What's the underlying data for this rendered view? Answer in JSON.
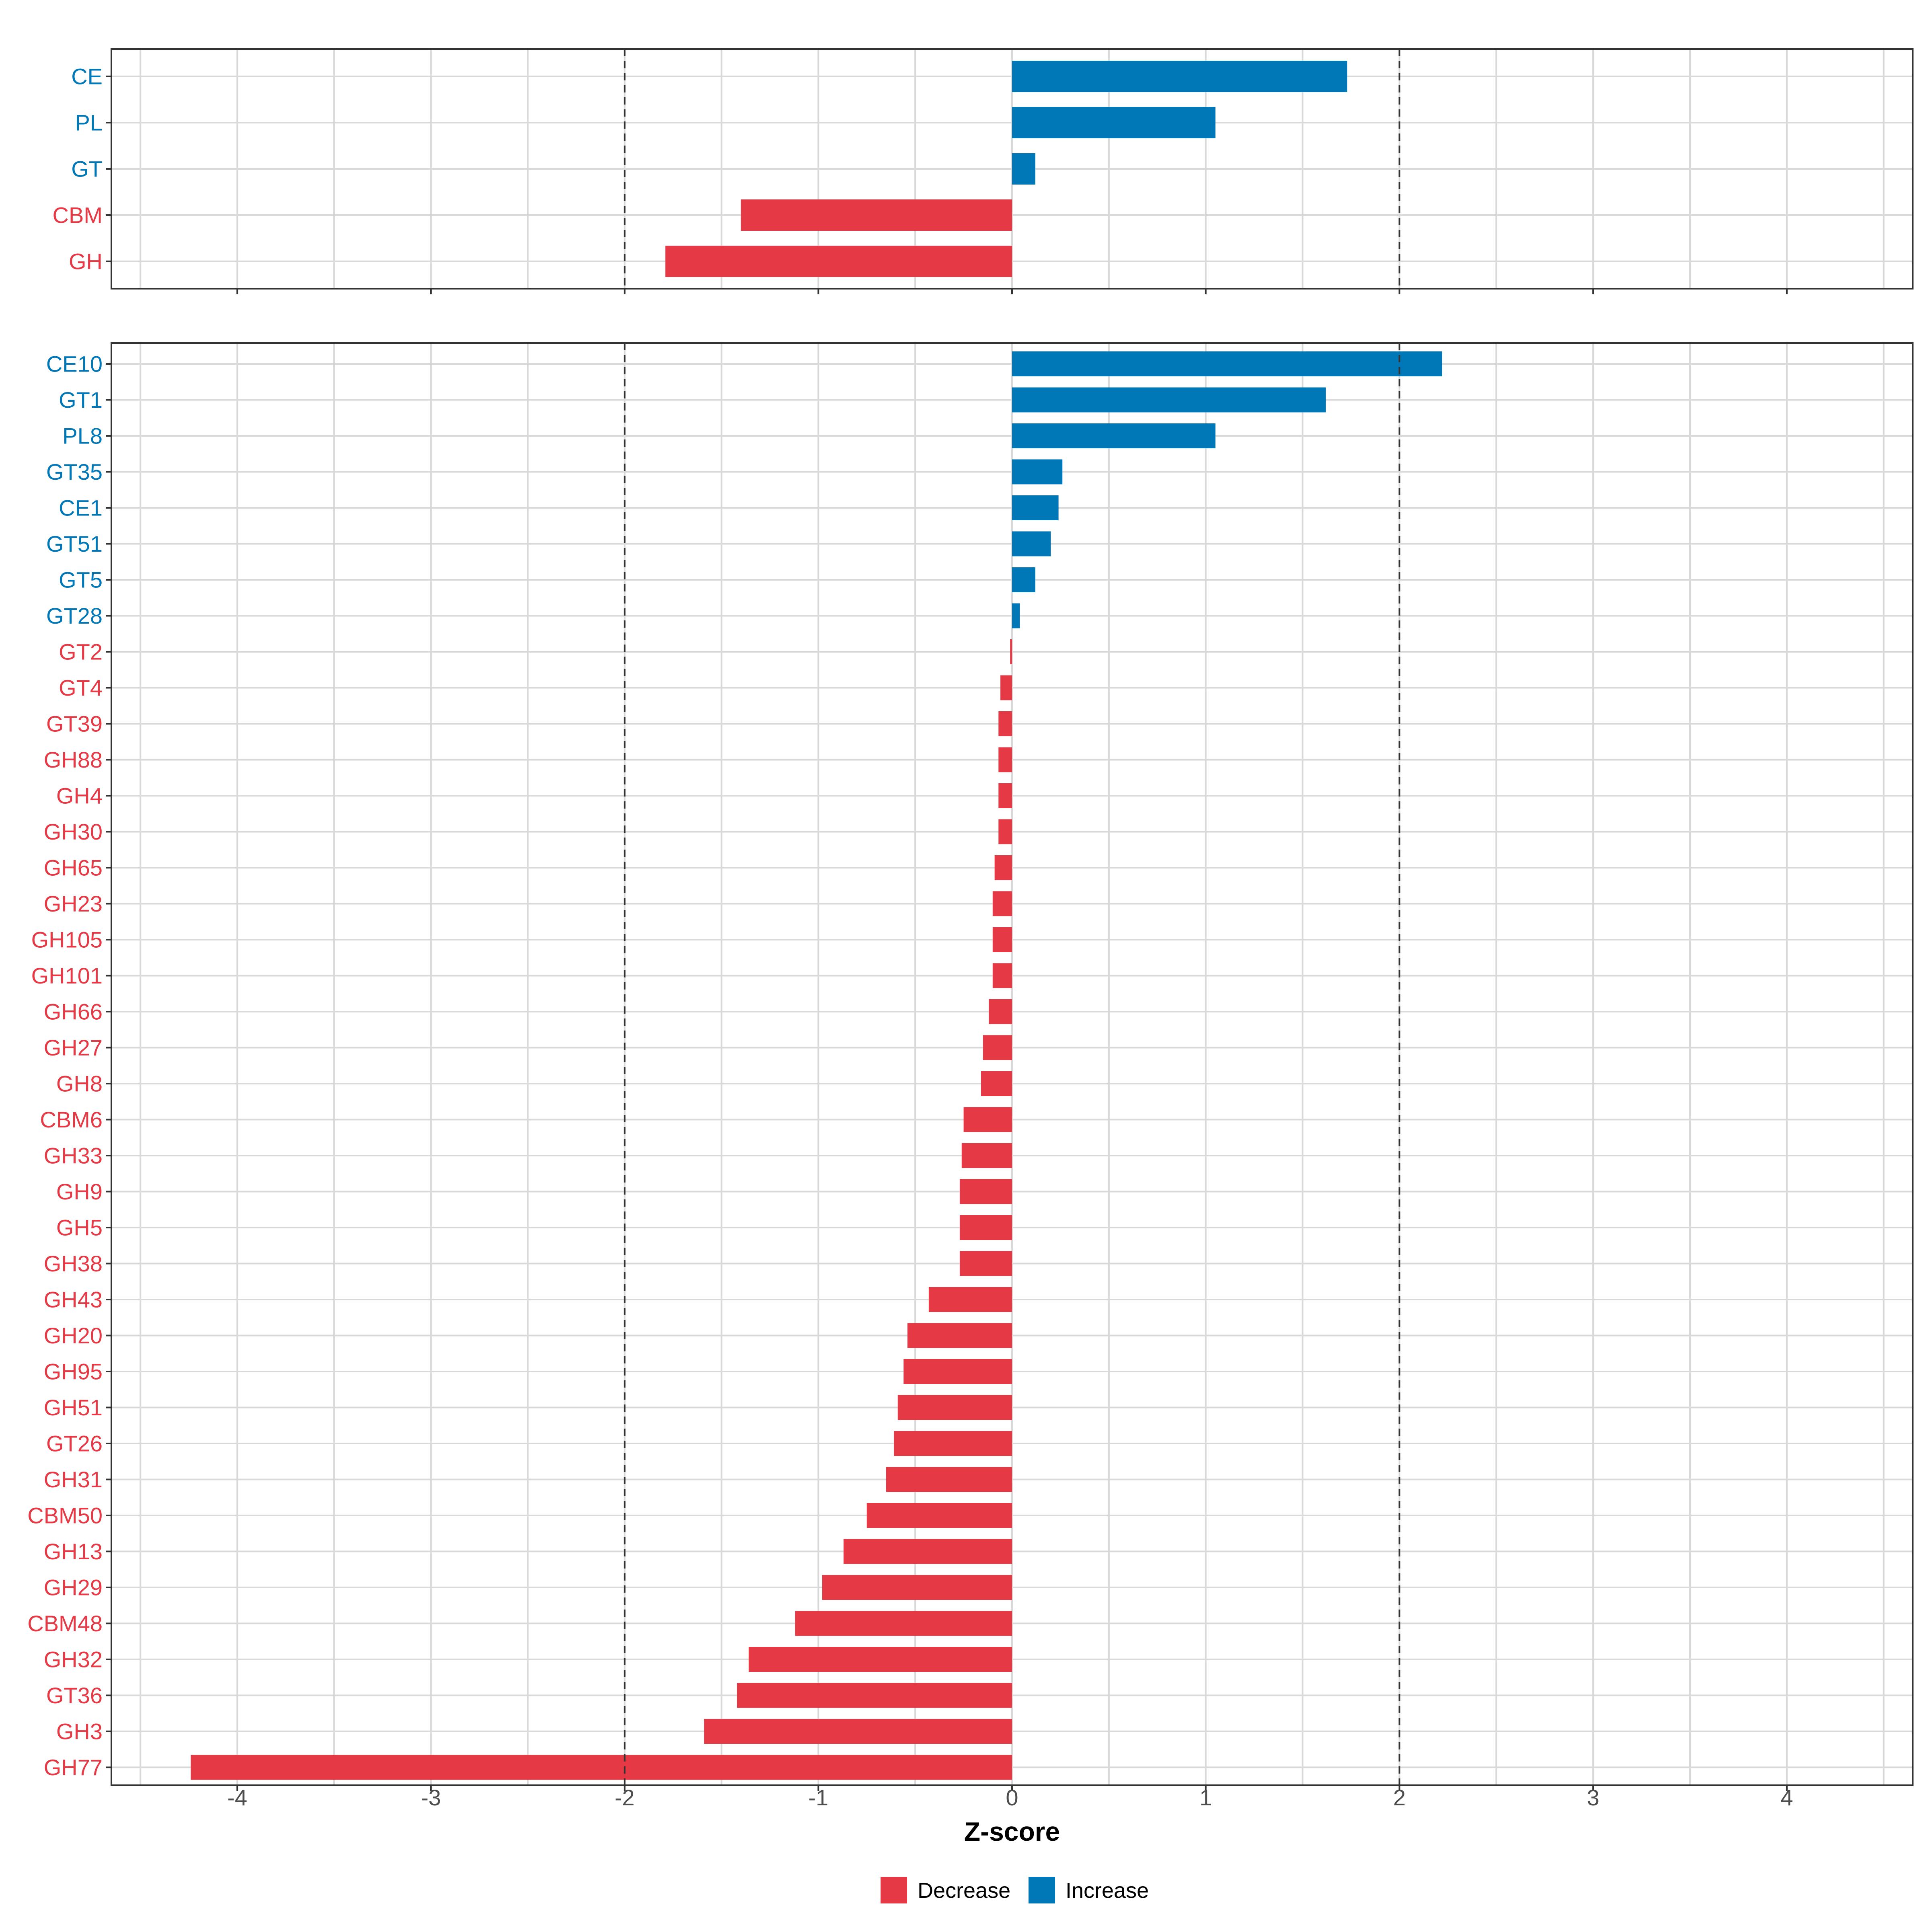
{
  "chart_data": [
    {
      "type": "bar",
      "orientation": "horizontal",
      "panel": "top",
      "categories": [
        "CE",
        "PL",
        "GT",
        "CBM",
        "GH"
      ],
      "values": [
        1.73,
        1.05,
        0.12,
        -1.4,
        -1.79
      ],
      "xlim": [
        -4.65,
        4.65
      ],
      "reference_lines": [
        -2,
        2
      ],
      "grid": true
    },
    {
      "type": "bar",
      "orientation": "horizontal",
      "panel": "bottom",
      "categories": [
        "CE10",
        "GT1",
        "PL8",
        "GT35",
        "CE1",
        "GT51",
        "GT5",
        "GT28",
        "GT2",
        "GT4",
        "GT39",
        "GH88",
        "GH4",
        "GH30",
        "GH65",
        "GH23",
        "GH105",
        "GH101",
        "GH66",
        "GH27",
        "GH8",
        "CBM6",
        "GH33",
        "GH9",
        "GH5",
        "GH38",
        "GH43",
        "GH20",
        "GH95",
        "GH51",
        "GT26",
        "GH31",
        "CBM50",
        "GH13",
        "GH29",
        "CBM48",
        "GH32",
        "GT36",
        "GH3",
        "GH77"
      ],
      "values": [
        2.22,
        1.62,
        1.05,
        0.26,
        0.24,
        0.2,
        0.12,
        0.04,
        -0.01,
        -0.06,
        -0.07,
        -0.07,
        -0.07,
        -0.07,
        -0.09,
        -0.1,
        -0.1,
        -0.1,
        -0.12,
        -0.15,
        -0.16,
        -0.25,
        -0.26,
        -0.27,
        -0.27,
        -0.27,
        -0.43,
        -0.54,
        -0.56,
        -0.59,
        -0.61,
        -0.65,
        -0.75,
        -0.87,
        -0.98,
        -1.12,
        -1.36,
        -1.42,
        -1.59,
        -4.24
      ],
      "xlim": [
        -4.65,
        4.65
      ],
      "reference_lines": [
        -2,
        2
      ],
      "grid": true,
      "xlabel": "Z-score",
      "xticks": [
        -4,
        -3,
        -2,
        -1,
        0,
        1,
        2,
        3,
        4
      ]
    }
  ],
  "legend": {
    "position": "bottom",
    "items": [
      {
        "label": "Decrease",
        "color": "#E63946"
      },
      {
        "label": "Increase",
        "color": "#0077B6"
      }
    ]
  },
  "colors": {
    "decrease": "#E63946",
    "increase": "#0077B6",
    "grid": "#D9D9D9",
    "panel_border": "#333333",
    "reference_line": "#333333",
    "tick_text": "#4D4D4D"
  }
}
